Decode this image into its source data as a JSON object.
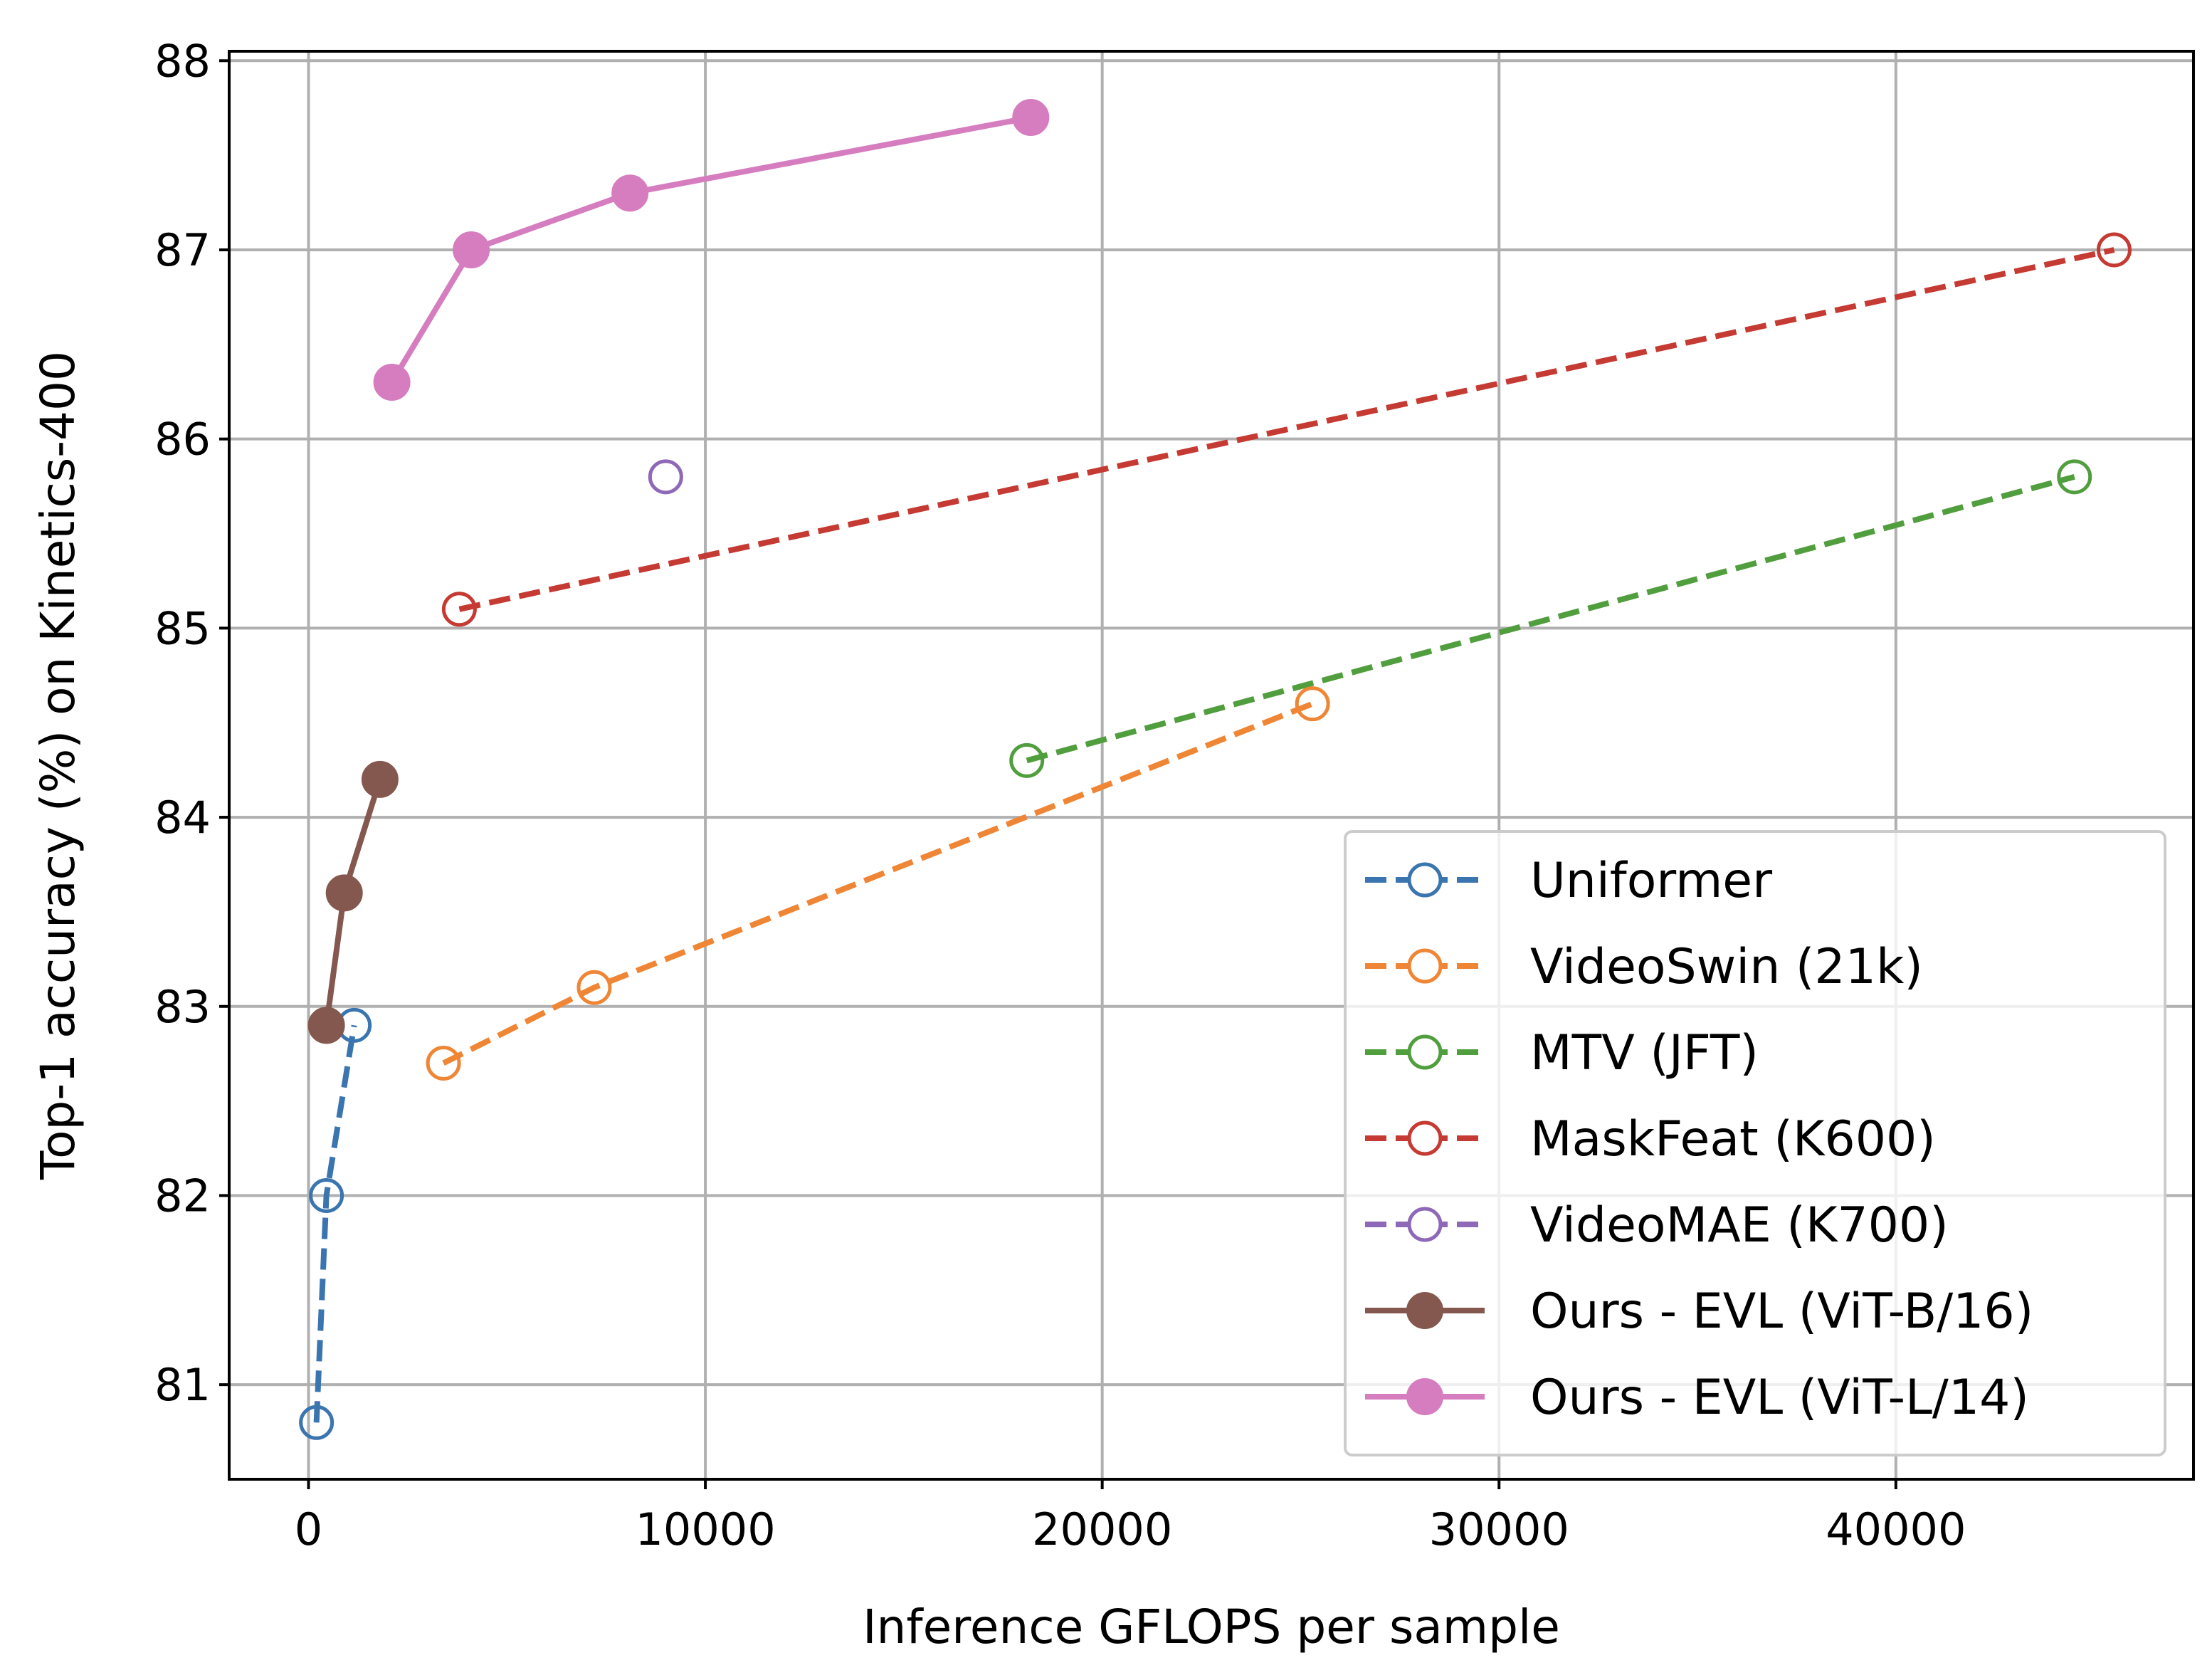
{
  "chart_data": {
    "type": "line",
    "xlabel": "Inference GFLOPS per sample",
    "ylabel": "Top-1 accuracy (%) on Kinetics-400",
    "xlim": [
      -2000,
      47500
    ],
    "ylim": [
      80.5,
      88.05
    ],
    "xticks": [
      0,
      10000,
      20000,
      30000,
      40000
    ],
    "yticks": [
      81,
      82,
      83,
      84,
      85,
      86,
      87,
      88
    ],
    "grid": true,
    "legend_position": "lower-right",
    "series": [
      {
        "name": "Uniformer",
        "color": "#3b75af",
        "line": "dashed",
        "marker": "open-circle",
        "points": [
          [
            200,
            80.8
          ],
          [
            450,
            82.0
          ],
          [
            1150,
            82.9
          ]
        ]
      },
      {
        "name": "VideoSwin (21k)",
        "color": "#ef8636",
        "line": "dashed",
        "marker": "open-circle",
        "points": [
          [
            3400,
            82.7
          ],
          [
            7200,
            83.1
          ],
          [
            25300,
            84.6
          ]
        ]
      },
      {
        "name": "MTV (JFT)",
        "color": "#519e3e",
        "line": "dashed",
        "marker": "open-circle",
        "points": [
          [
            18100,
            84.3
          ],
          [
            44500,
            85.8
          ]
        ]
      },
      {
        "name": "MaskFeat (K600)",
        "color": "#c53a32",
        "line": "dashed",
        "marker": "open-circle",
        "points": [
          [
            3800,
            85.1
          ],
          [
            45500,
            87.0
          ]
        ]
      },
      {
        "name": "VideoMAE (K700)",
        "color": "#8d69b8",
        "line": "dashed",
        "marker": "open-circle",
        "points": [
          [
            9000,
            85.8
          ]
        ]
      },
      {
        "name": "Ours - EVL (ViT-B/16)",
        "color": "#84584e",
        "line": "solid",
        "marker": "filled-circle",
        "points": [
          [
            450,
            82.9
          ],
          [
            900,
            83.6
          ],
          [
            1800,
            84.2
          ]
        ]
      },
      {
        "name": "Ours - EVL (ViT-L/14)",
        "color": "#d57dbf",
        "line": "solid",
        "marker": "filled-circle",
        "points": [
          [
            2100,
            86.3
          ],
          [
            4100,
            87.0
          ],
          [
            8100,
            87.3
          ],
          [
            18200,
            87.7
          ]
        ]
      }
    ]
  }
}
